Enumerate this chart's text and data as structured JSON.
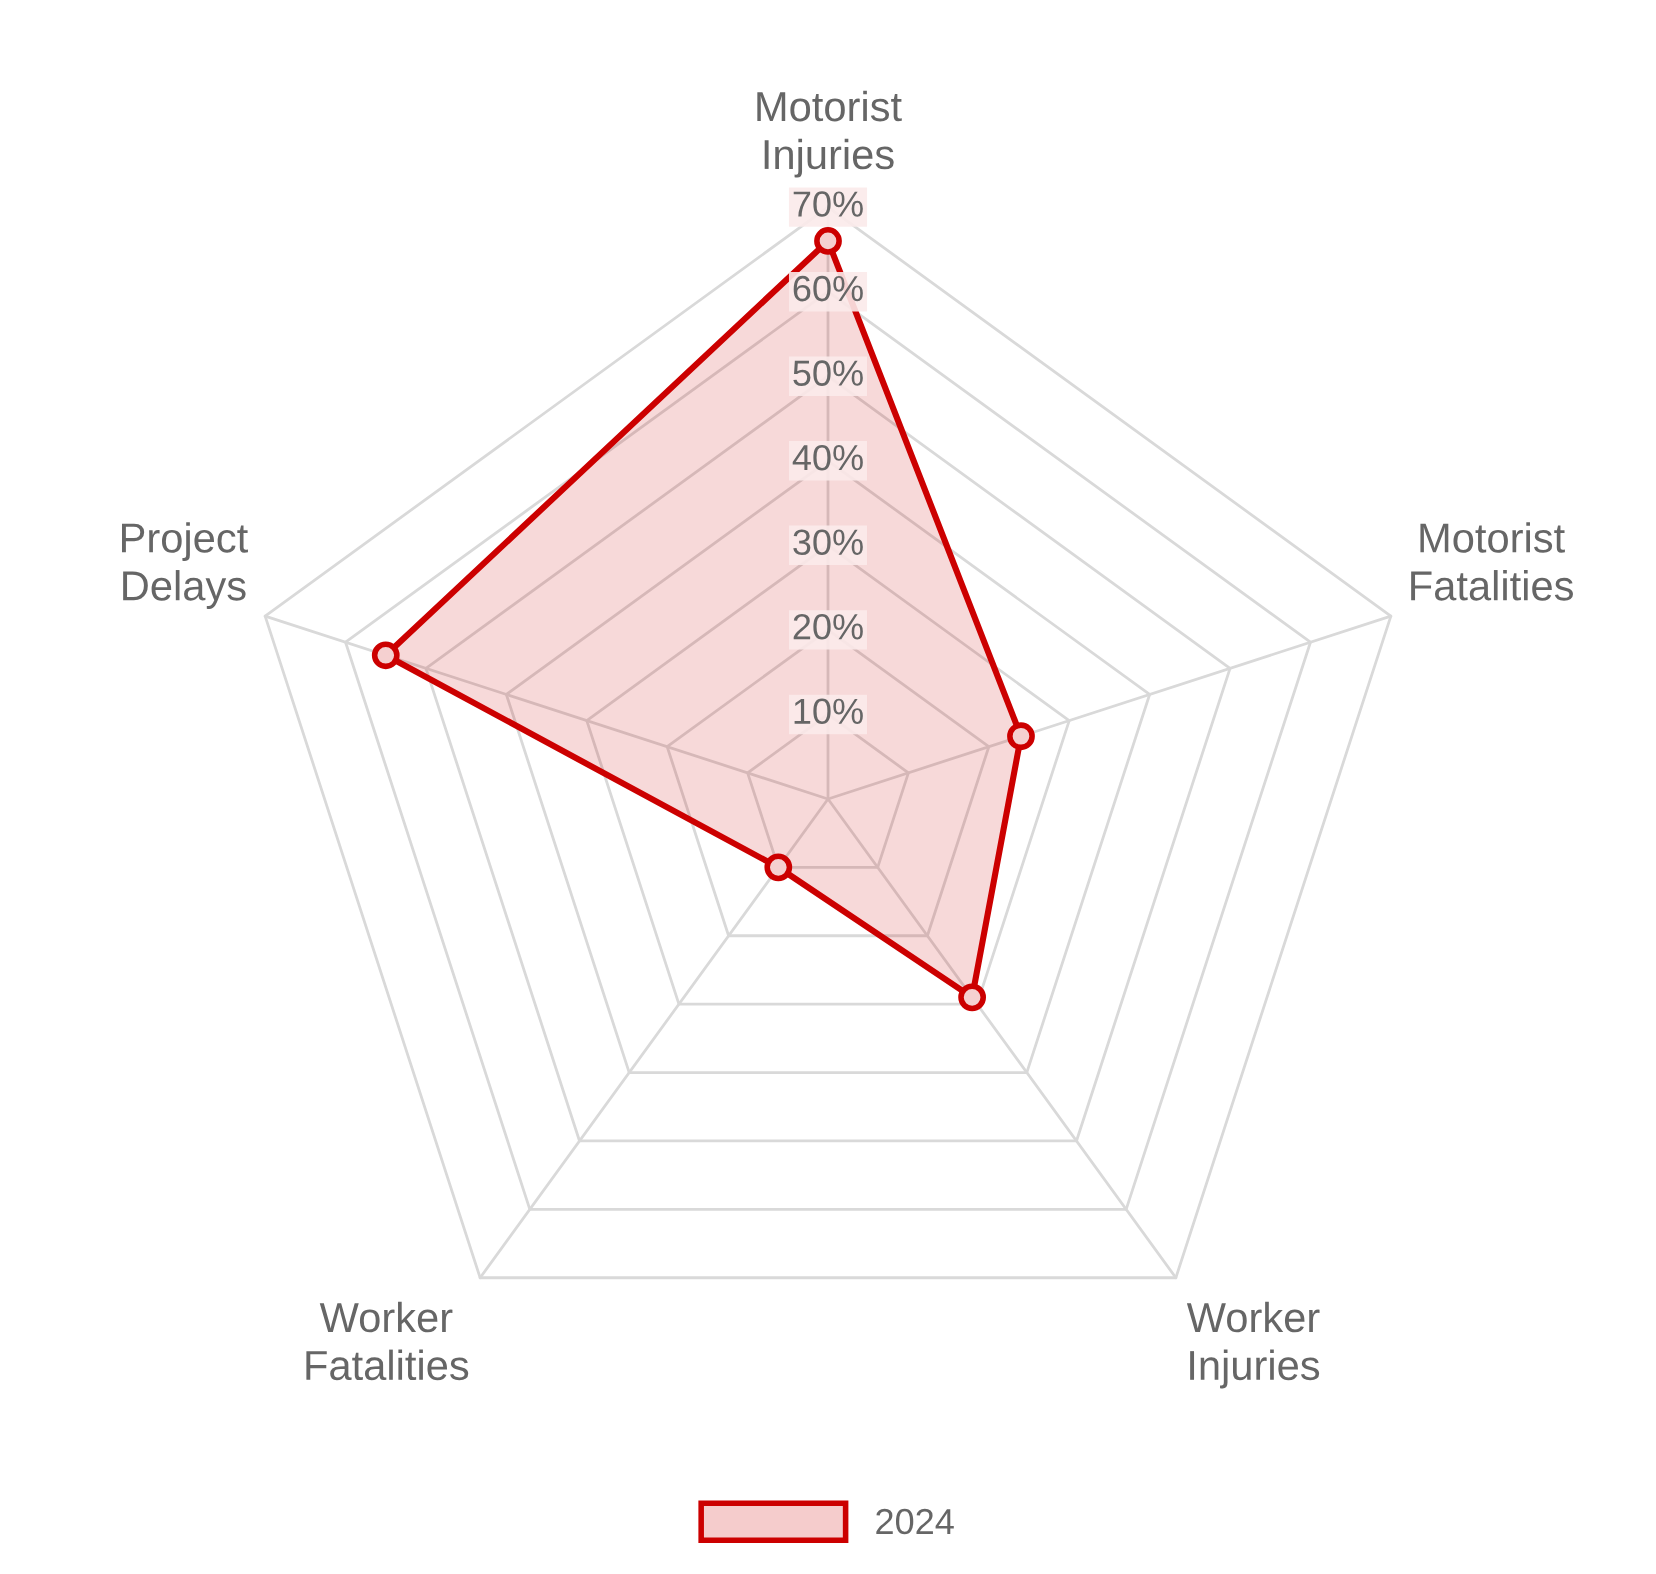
{
  "chart_data": {
    "type": "radar",
    "categories": [
      "Motorist\nInjuries",
      "Motorist\nFatalities",
      "Worker\nInjuries",
      "Worker\nFatalities",
      "Project\nDelays"
    ],
    "series": [
      {
        "name": "2024",
        "color": "#cc0000",
        "values": [
          66,
          24,
          29,
          10,
          55
        ]
      }
    ],
    "ylim": [
      0,
      70
    ],
    "yticks": [
      {
        "value": 10,
        "label": "10%"
      },
      {
        "value": 20,
        "label": "20%"
      },
      {
        "value": 30,
        "label": "30%"
      },
      {
        "value": 40,
        "label": "40%"
      },
      {
        "value": 50,
        "label": "50%"
      },
      {
        "value": 60,
        "label": "60%"
      },
      {
        "value": 70,
        "label": "70%"
      }
    ],
    "grid": true,
    "legend": "bottom",
    "marker": "circle",
    "line_style": "solid"
  }
}
